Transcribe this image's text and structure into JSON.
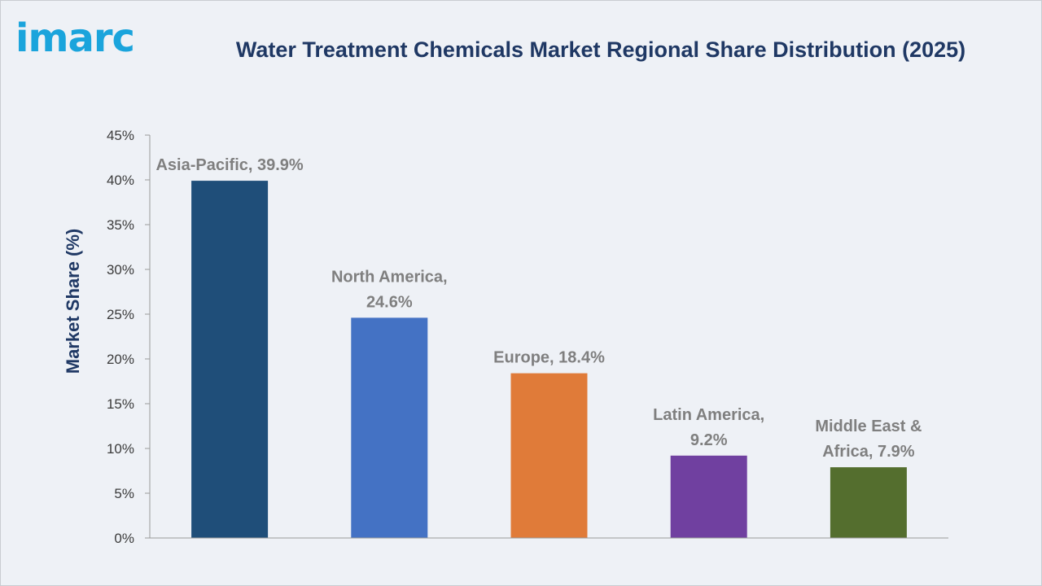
{
  "brand": {
    "logo_text": "imarc"
  },
  "colors": {
    "background": "#eef1f6",
    "title": "#1f3864",
    "logo": "#1aa4dc",
    "axis_title": "#1f3864",
    "data_label": "#7f7f7f",
    "axis_line": "#9a9a9a"
  },
  "chart_data": {
    "type": "bar",
    "title": "Water Treatment Chemicals Market Regional Share Distribution (2025)",
    "xlabel": "",
    "ylabel": "Market Share (%)",
    "categories": [
      "Asia-Pacific",
      "North America",
      "Europe",
      "Latin America",
      "Middle East & Africa"
    ],
    "values": [
      39.9,
      24.6,
      18.4,
      9.2,
      7.9
    ],
    "bar_colors": [
      "#1f4e79",
      "#4472c4",
      "#e07b39",
      "#7040a0",
      "#546e2e"
    ],
    "data_labels": [
      [
        "Asia-Pacific, 39.9%"
      ],
      [
        "North America,",
        "24.6%"
      ],
      [
        "Europe, 18.4%"
      ],
      [
        "Latin America,",
        "9.2%"
      ],
      [
        "Middle East &",
        "Africa, 7.9%"
      ]
    ],
    "ylim": [
      0,
      45
    ],
    "yticks": [
      0,
      5,
      10,
      15,
      20,
      25,
      30,
      35,
      40,
      45
    ],
    "ytick_labels": [
      "0%",
      "5%",
      "10%",
      "15%",
      "20%",
      "25%",
      "30%",
      "35%",
      "40%",
      "45%"
    ],
    "grid": false,
    "legend": "none"
  }
}
